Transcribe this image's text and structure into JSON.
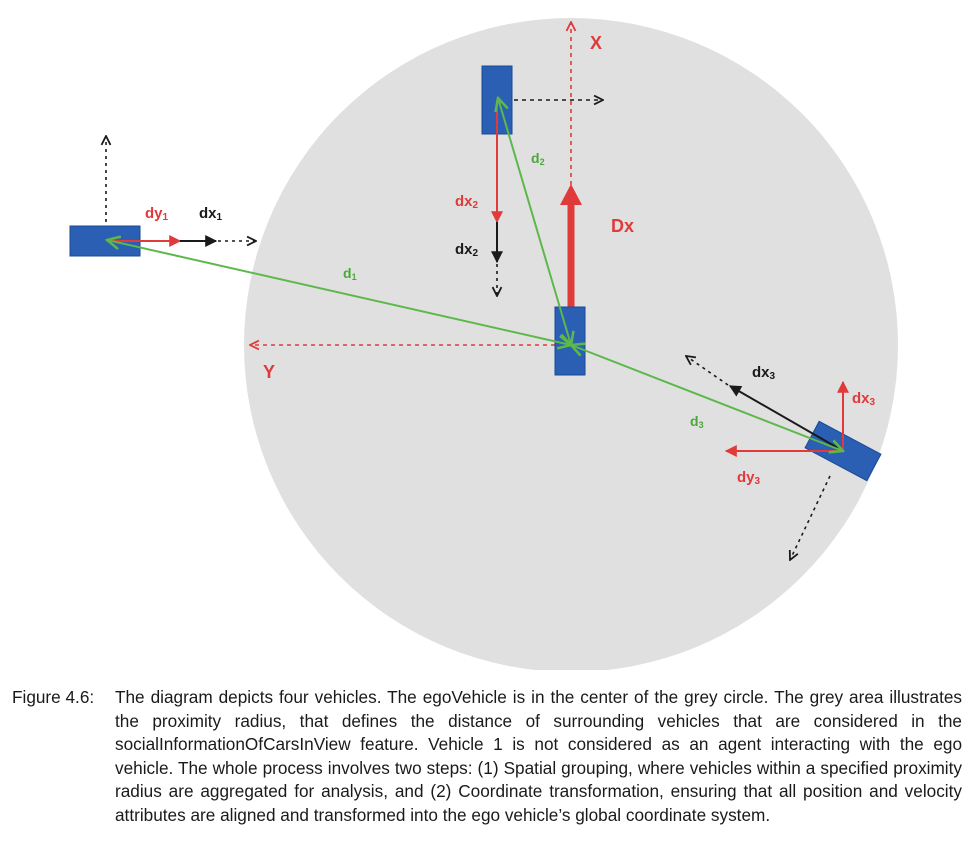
{
  "labels": {
    "axis_x": "X",
    "axis_y": "Y",
    "Dx": "Dx",
    "dy1_base": "dy",
    "dy1_sub": "1",
    "dx1_base": "dx",
    "dx1_sub": "1",
    "d1_base": "d",
    "d1_sub": "1",
    "d2_base": "d",
    "d2_sub": "2",
    "dx2_red_base": "dx",
    "dx2_red_sub": "2",
    "dx2_black_base": "dx",
    "dx2_black_sub": "2",
    "dx3_black_base": "dx",
    "dx3_black_sub": "3",
    "dx3_red_base": "dx",
    "dx3_red_sub": "3",
    "d3_base": "d",
    "d3_sub": "3",
    "dy3_base": "dy",
    "dy3_sub": "3"
  },
  "caption": {
    "label": "Figure 4.6:",
    "text": "The diagram depicts four vehicles. The egoVehicle is in the center of the grey circle. The grey area illustrates the proximity radius, that defines the distance of surrounding vehicles that are considered in the socialInformationOfCarsInView feature. Vehicle 1 is not considered as an agent interacting with the ego vehicle. The whole process involves two steps: (1) Spatial grouping, where vehicles within a specified proximity radius are aggregated for analysis, and (2) Coordinate transformation, ensuring that all position and velocity attributes are aligned and transformed into the ego vehicle’s global coordinate system."
  },
  "colors": {
    "circle": "#e0e0e0",
    "vehicle": "#2a5fb3",
    "red": "#e03a3a",
    "green": "#5cb84a",
    "black": "#1a1a1a"
  }
}
